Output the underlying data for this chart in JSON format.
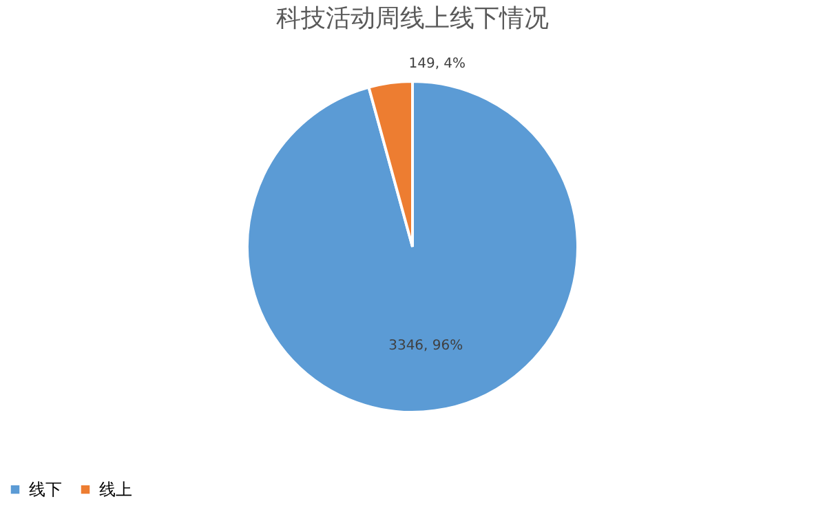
{
  "chart_data": {
    "type": "pie",
    "title": "科技活动周线上线下情况",
    "categories": [
      "线下",
      "线上"
    ],
    "values": [
      3346,
      149
    ],
    "colors": [
      "#5b9bd5",
      "#ed7d31"
    ],
    "value_labels": [
      "3346, 96%",
      "149, 4%"
    ],
    "legend": "bottom"
  }
}
